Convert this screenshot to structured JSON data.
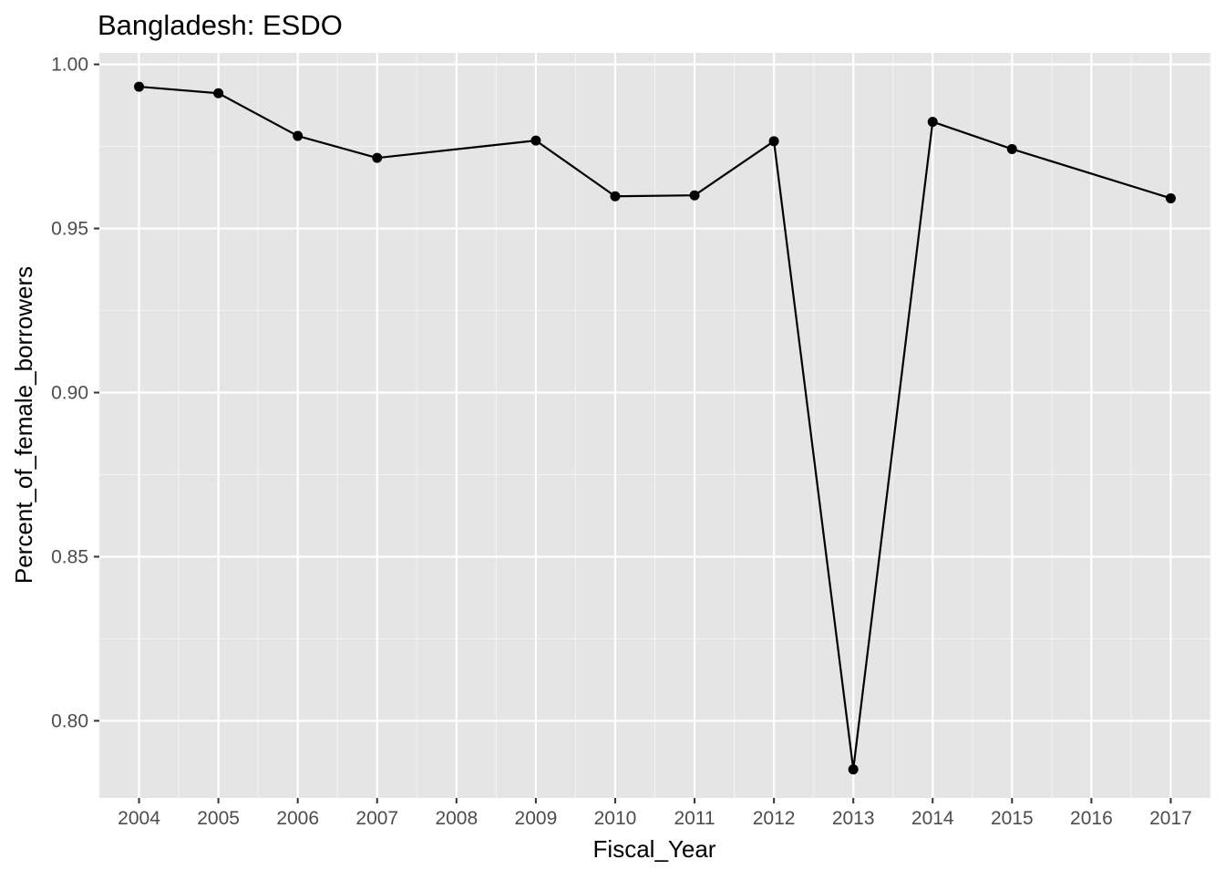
{
  "chart_data": {
    "type": "line",
    "title": "Bangladesh:  ESDO",
    "xlabel": "Fiscal_Year",
    "ylabel": "Percent_of_female_borrowers",
    "x_tick_labels": [
      "2004",
      "2005",
      "2006",
      "2007",
      "2008",
      "2009",
      "2010",
      "2011",
      "2012",
      "2013",
      "2014",
      "2015",
      "2016",
      "2017"
    ],
    "y_tick_labels": [
      "0.80",
      "0.85",
      "0.90",
      "0.95",
      "1.00"
    ],
    "y_ticks": [
      0.8,
      0.85,
      0.9,
      0.95,
      1.0
    ],
    "xlim": [
      2003.5,
      2017.5
    ],
    "ylim": [
      0.7765,
      1.0035
    ],
    "grid": true,
    "series": [
      {
        "x": [
          2004,
          2005,
          2006,
          2007,
          2009,
          2010,
          2011,
          2012,
          2013,
          2014,
          2015,
          2017
        ],
        "y": [
          0.9932,
          0.9912,
          0.9782,
          0.9715,
          0.9768,
          0.9598,
          0.9601,
          0.9766,
          0.7852,
          0.9825,
          0.9742,
          0.9592
        ]
      }
    ],
    "colors": {
      "panel_background": "#e5e5e5",
      "grid_major": "#ffffff",
      "grid_minor": "#f2f2f2",
      "line": "#000000",
      "point": "#000000",
      "tick_label": "#4d4d4d",
      "tick_mark": "#333333"
    }
  }
}
